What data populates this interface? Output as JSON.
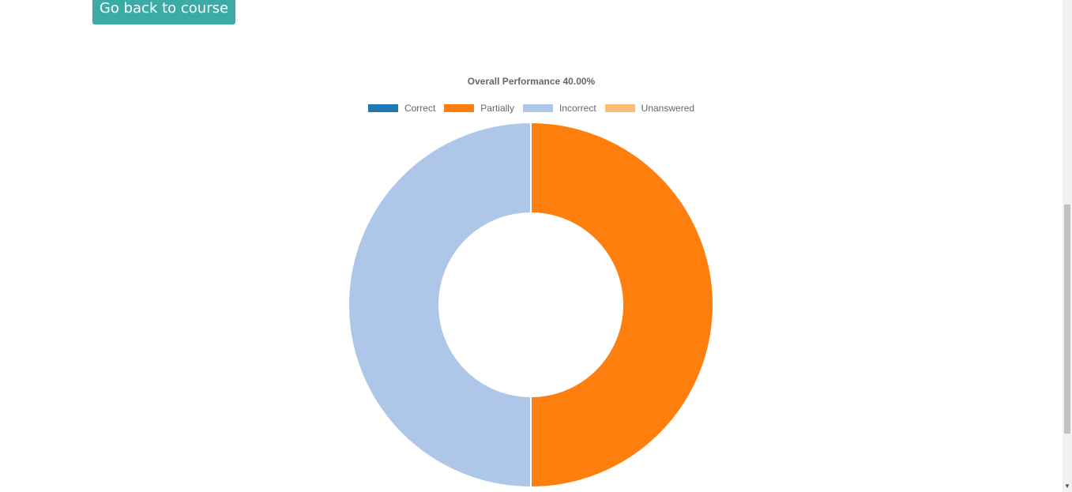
{
  "nav": {
    "back_button_label": "Go back to course"
  },
  "colors": {
    "button_bg": "#3aaba5",
    "correct": "#1f77b4",
    "partially": "#ff7f0e",
    "incorrect": "#aec7e8",
    "unanswered": "#ffbb78"
  },
  "chart_data": {
    "type": "pie",
    "title": "Overall Performance 40.00%",
    "legend_position": "top",
    "categories": [
      "Correct",
      "Partially",
      "Incorrect",
      "Unanswered"
    ],
    "values": [
      0,
      1,
      1,
      0
    ],
    "colors": [
      "#1f77b4",
      "#ff7f0e",
      "#aec7e8",
      "#ffbb78"
    ]
  }
}
